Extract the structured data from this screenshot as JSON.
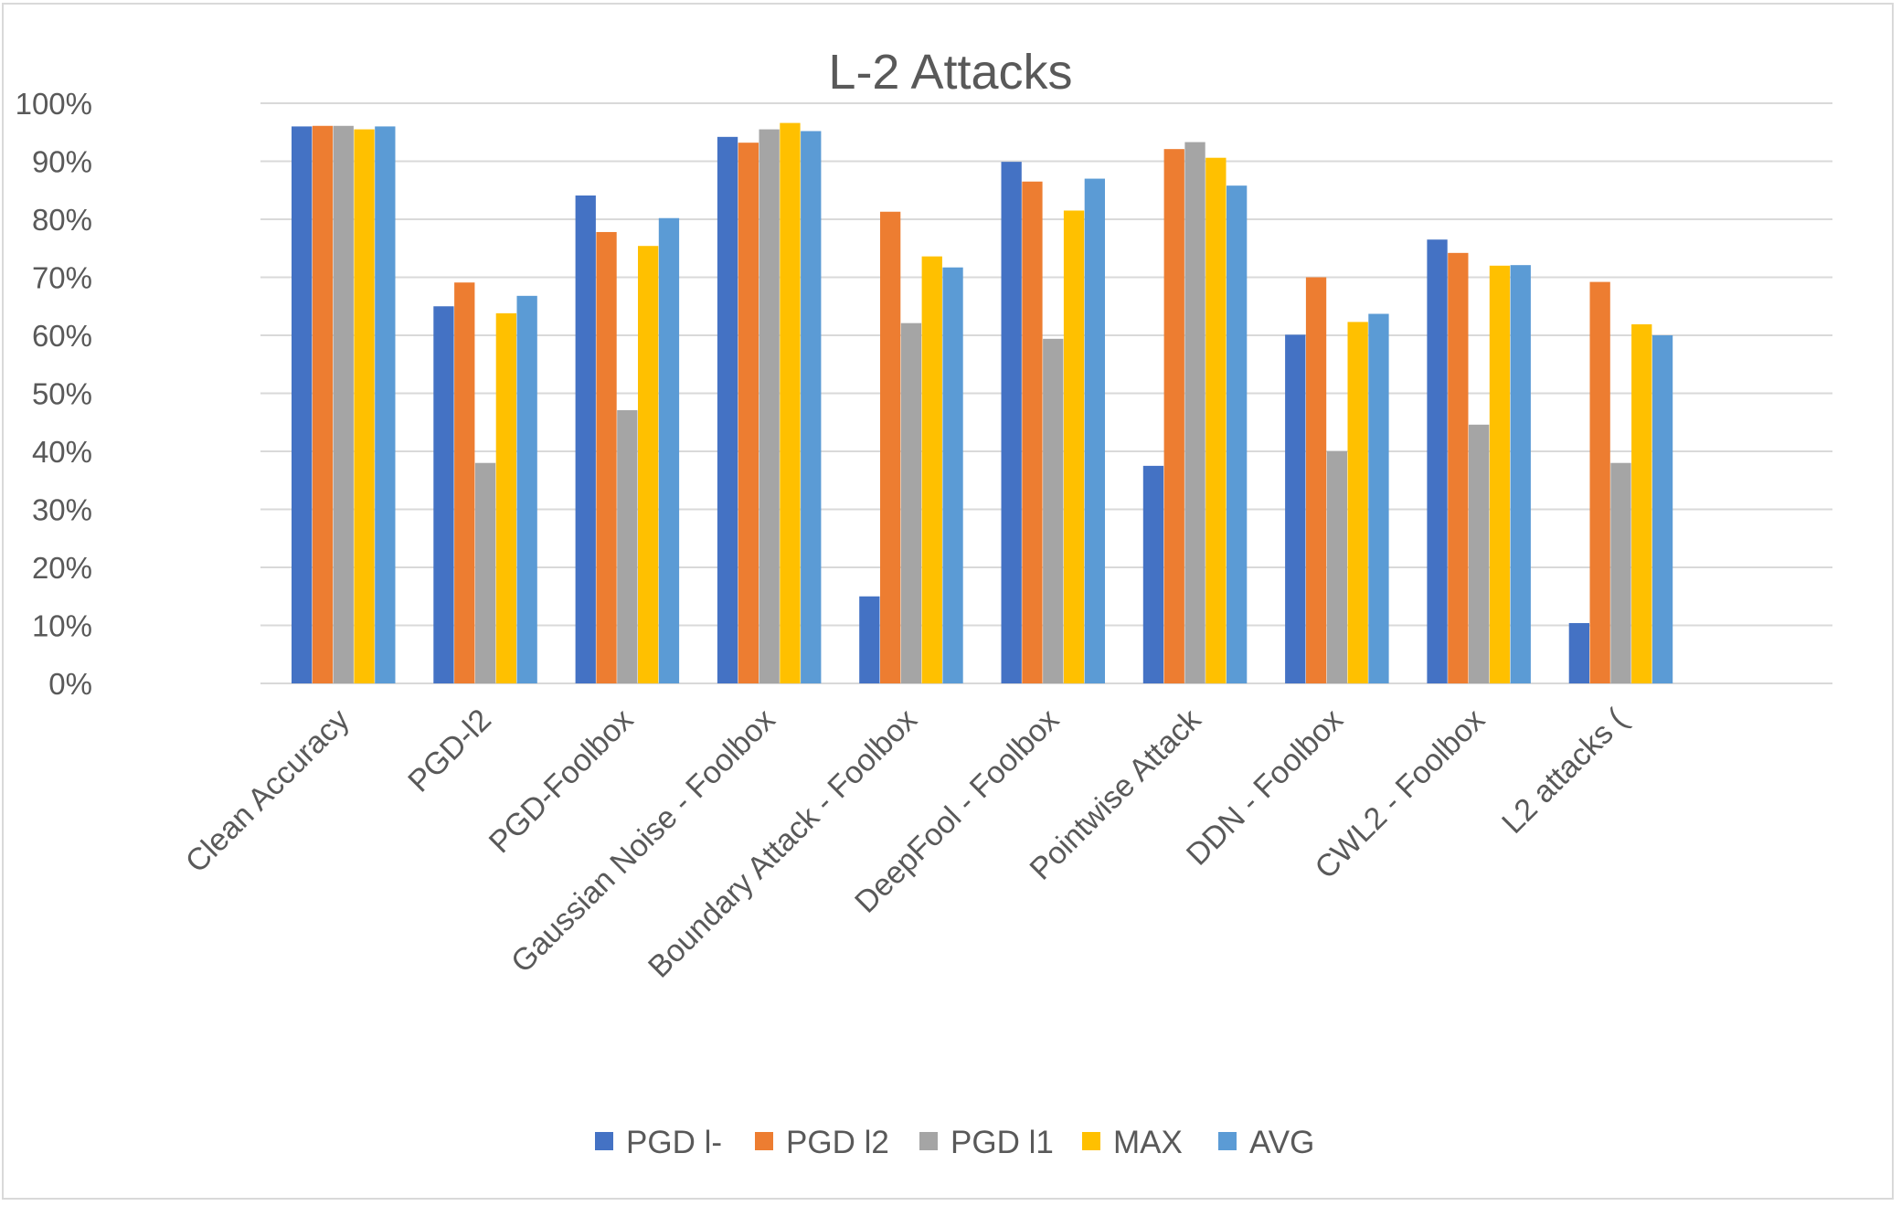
{
  "chart_data": {
    "type": "bar",
    "title": "L-2 Attacks",
    "xlabel": "",
    "ylabel": "",
    "ylim": [
      0,
      100
    ],
    "yticks": [
      "0%",
      "10%",
      "20%",
      "30%",
      "40%",
      "50%",
      "60%",
      "70%",
      "80%",
      "90%",
      "100%"
    ],
    "grid": true,
    "legend_position": "bottom",
    "categories": [
      "Clean Accuracy",
      "PGD-l2",
      "PGD-Foolbox",
      "Gaussian Noise - Foolbox",
      "Boundary Attack - Foolbox",
      "DeepFool - Foolbox",
      "Pointwise Attack",
      "DDN - Foolbox",
      "CWL2 - Foolbox",
      "L2 attacks ("
    ],
    "series": [
      {
        "name": "PGD l-",
        "color": "#4472C4",
        "values": [
          96.0,
          65.0,
          84.1,
          94.2,
          15.0,
          89.9,
          37.5,
          60.1,
          76.5,
          10.4
        ]
      },
      {
        "name": "PGD l2",
        "color": "#ED7D31",
        "values": [
          96.1,
          69.1,
          77.8,
          93.2,
          81.3,
          86.5,
          92.1,
          70.0,
          74.2,
          69.2
        ]
      },
      {
        "name": "PGD l1",
        "color": "#A5A5A5",
        "values": [
          96.1,
          38.0,
          47.1,
          95.5,
          62.1,
          59.4,
          93.3,
          40.0,
          44.6,
          38.0
        ]
      },
      {
        "name": "MAX",
        "color": "#FFC000",
        "values": [
          95.5,
          63.8,
          75.4,
          96.6,
          73.6,
          81.5,
          90.6,
          62.3,
          72.0,
          61.9
        ]
      },
      {
        "name": "AVG",
        "color": "#5B9BD5",
        "values": [
          96.0,
          66.8,
          80.2,
          95.2,
          71.7,
          87.0,
          85.8,
          63.7,
          72.1,
          60.0
        ]
      }
    ]
  }
}
